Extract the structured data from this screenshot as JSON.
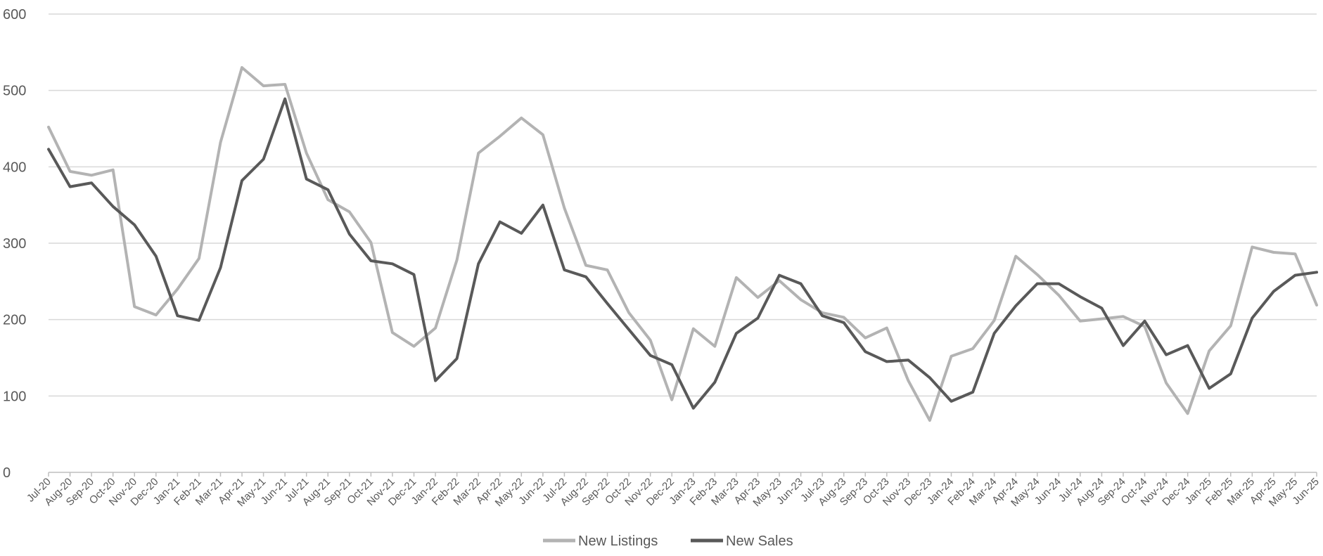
{
  "chart_data": {
    "type": "line",
    "x": [
      "Jul-20",
      "Aug-20",
      "Sep-20",
      "Oct-20",
      "Nov-20",
      "Dec-20",
      "Jan-21",
      "Feb-21",
      "Mar-21",
      "Apr-21",
      "May-21",
      "Jun-21",
      "Jul-21",
      "Aug-21",
      "Sep-21",
      "Oct-21",
      "Nov-21",
      "Dec-21",
      "Jan-22",
      "Feb-22",
      "Mar-22",
      "Apr-22",
      "May-22",
      "Jun-22",
      "Jul-22",
      "Aug-22",
      "Sep-22",
      "Oct-22",
      "Nov-22",
      "Dec-22",
      "Jan-23",
      "Feb-23",
      "Mar-23",
      "Apr-23",
      "May-23",
      "Jun-23",
      "Jul-23",
      "Aug-23",
      "Sep-23",
      "Oct-23",
      "Nov-23",
      "Dec-23",
      "Jan-24",
      "Feb-24",
      "Mar-24",
      "Apr-24",
      "May-24",
      "Jun-24",
      "Jul-24",
      "Aug-24",
      "Sep-24",
      "Oct-24",
      "Nov-24",
      "Dec-24",
      "Jan-25",
      "Feb-25",
      "Mar-25",
      "Apr-25",
      "May-25",
      "Jun-25"
    ],
    "series": [
      {
        "name": "New Listings",
        "color": "#b3b3b3",
        "values": [
          452,
          394,
          389,
          396,
          217,
          206,
          240,
          280,
          432,
          530,
          506,
          508,
          418,
          357,
          341,
          301,
          183,
          165,
          189,
          278,
          418,
          440,
          464,
          442,
          346,
          271,
          265,
          209,
          173,
          95,
          188,
          165,
          255,
          229,
          251,
          226,
          209,
          203,
          176,
          189,
          120,
          68,
          152,
          162,
          199,
          283,
          259,
          232,
          198,
          201,
          204,
          191,
          117,
          77,
          159,
          192,
          295,
          288,
          286,
          219
        ]
      },
      {
        "name": "New Sales",
        "color": "#595959",
        "values": [
          423,
          374,
          379,
          348,
          324,
          283,
          205,
          199,
          268,
          382,
          410,
          489,
          384,
          370,
          312,
          277,
          273,
          259,
          120,
          149,
          273,
          328,
          313,
          350,
          265,
          256,
          221,
          187,
          153,
          141,
          84,
          118,
          182,
          202,
          258,
          247,
          205,
          196,
          158,
          145,
          147,
          124,
          93,
          105,
          182,
          218,
          247,
          247,
          230,
          215,
          166,
          198,
          154,
          166,
          110,
          129,
          202,
          237,
          258,
          262
        ]
      }
    ],
    "ylim": [
      0,
      600
    ],
    "yticks": [
      0,
      100,
      200,
      300,
      400,
      500,
      600
    ],
    "grid": true,
    "legend_position": "bottom-center"
  }
}
